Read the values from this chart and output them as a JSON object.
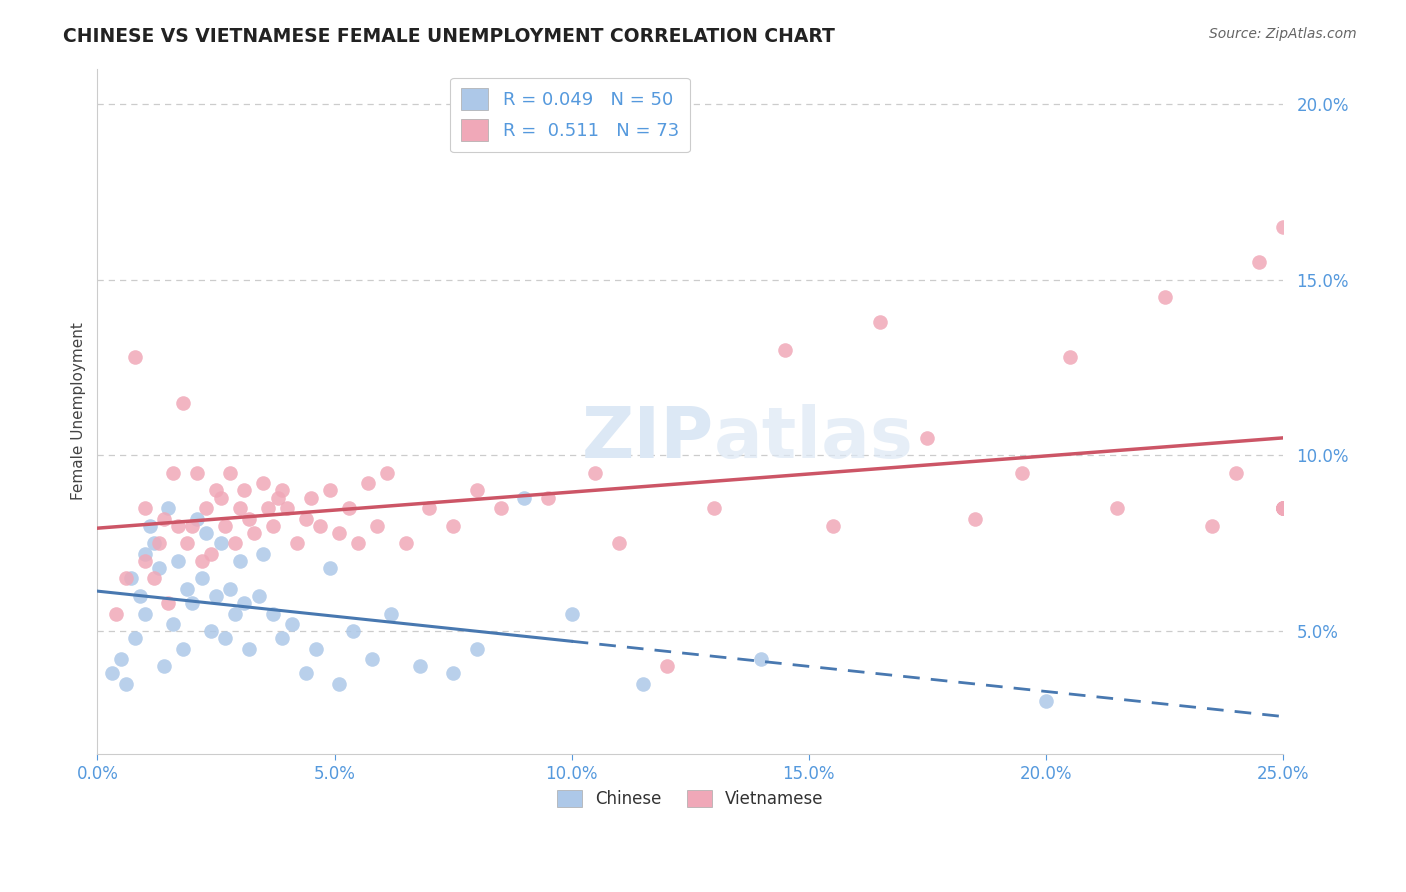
{
  "title": "CHINESE VS VIETNAMESE FEMALE UNEMPLOYMENT CORRELATION CHART",
  "source": "Source: ZipAtlas.com",
  "ylabel": "Female Unemployment",
  "xlim": [
    0.0,
    25.0
  ],
  "ylim": [
    1.5,
    21.0
  ],
  "yticks": [
    5.0,
    10.0,
    15.0,
    20.0
  ],
  "xticks": [
    0.0,
    5.0,
    10.0,
    15.0,
    20.0,
    25.0
  ],
  "chinese_R": 0.049,
  "chinese_N": 50,
  "vietnamese_R": 0.511,
  "vietnamese_N": 73,
  "chinese_color": "#adc8e8",
  "vietnamese_color": "#f0a8b8",
  "chinese_line_color": "#4878b0",
  "vietnamese_line_color": "#cc5566",
  "watermark_color": "#dce8f5",
  "legend_label_chinese": "Chinese",
  "legend_label_vietnamese": "Vietnamese",
  "background_color": "#ffffff",
  "grid_color": "#cccccc",
  "tick_color": "#5599dd",
  "title_color": "#222222",
  "source_color": "#666666",
  "ylabel_color": "#444444",
  "chinese_x": [
    0.3,
    0.5,
    0.6,
    0.7,
    0.8,
    0.9,
    1.0,
    1.0,
    1.1,
    1.2,
    1.3,
    1.4,
    1.5,
    1.6,
    1.7,
    1.8,
    1.9,
    2.0,
    2.1,
    2.2,
    2.3,
    2.4,
    2.5,
    2.6,
    2.7,
    2.8,
    2.9,
    3.0,
    3.1,
    3.2,
    3.4,
    3.5,
    3.7,
    3.9,
    4.1,
    4.4,
    4.6,
    4.9,
    5.1,
    5.4,
    5.8,
    6.2,
    6.8,
    7.5,
    8.0,
    9.0,
    10.0,
    11.5,
    14.0,
    20.0
  ],
  "chinese_y": [
    3.8,
    4.2,
    3.5,
    6.5,
    4.8,
    6.0,
    7.2,
    5.5,
    8.0,
    7.5,
    6.8,
    4.0,
    8.5,
    5.2,
    7.0,
    4.5,
    6.2,
    5.8,
    8.2,
    6.5,
    7.8,
    5.0,
    6.0,
    7.5,
    4.8,
    6.2,
    5.5,
    7.0,
    5.8,
    4.5,
    6.0,
    7.2,
    5.5,
    4.8,
    5.2,
    3.8,
    4.5,
    6.8,
    3.5,
    5.0,
    4.2,
    5.5,
    4.0,
    3.8,
    4.5,
    8.8,
    5.5,
    3.5,
    4.2,
    3.0
  ],
  "vietnamese_x": [
    0.4,
    0.6,
    0.8,
    1.0,
    1.0,
    1.2,
    1.3,
    1.4,
    1.5,
    1.6,
    1.7,
    1.8,
    1.9,
    2.0,
    2.1,
    2.2,
    2.3,
    2.4,
    2.5,
    2.6,
    2.7,
    2.8,
    2.9,
    3.0,
    3.1,
    3.2,
    3.3,
    3.5,
    3.6,
    3.7,
    3.8,
    3.9,
    4.0,
    4.2,
    4.4,
    4.5,
    4.7,
    4.9,
    5.1,
    5.3,
    5.5,
    5.7,
    5.9,
    6.1,
    6.5,
    7.0,
    7.5,
    8.0,
    8.5,
    9.5,
    10.5,
    11.0,
    12.0,
    13.0,
    14.5,
    15.5,
    16.5,
    17.5,
    18.5,
    19.5,
    20.5,
    21.5,
    22.5,
    23.5,
    24.0,
    24.5,
    25.0,
    25.0,
    25.0,
    25.0,
    25.0,
    25.0,
    25.0
  ],
  "vietnamese_y": [
    5.5,
    6.5,
    12.8,
    7.0,
    8.5,
    6.5,
    7.5,
    8.2,
    5.8,
    9.5,
    8.0,
    11.5,
    7.5,
    8.0,
    9.5,
    7.0,
    8.5,
    7.2,
    9.0,
    8.8,
    8.0,
    9.5,
    7.5,
    8.5,
    9.0,
    8.2,
    7.8,
    9.2,
    8.5,
    8.0,
    8.8,
    9.0,
    8.5,
    7.5,
    8.2,
    8.8,
    8.0,
    9.0,
    7.8,
    8.5,
    7.5,
    9.2,
    8.0,
    9.5,
    7.5,
    8.5,
    8.0,
    9.0,
    8.5,
    8.8,
    9.5,
    7.5,
    4.0,
    8.5,
    13.0,
    8.0,
    13.8,
    10.5,
    8.2,
    9.5,
    12.8,
    8.5,
    14.5,
    8.0,
    9.5,
    15.5,
    16.5,
    8.5,
    8.5,
    8.5,
    8.5,
    8.5,
    8.5
  ],
  "chinese_solid_end": 10.0,
  "vietnamese_data_end": 25.0
}
